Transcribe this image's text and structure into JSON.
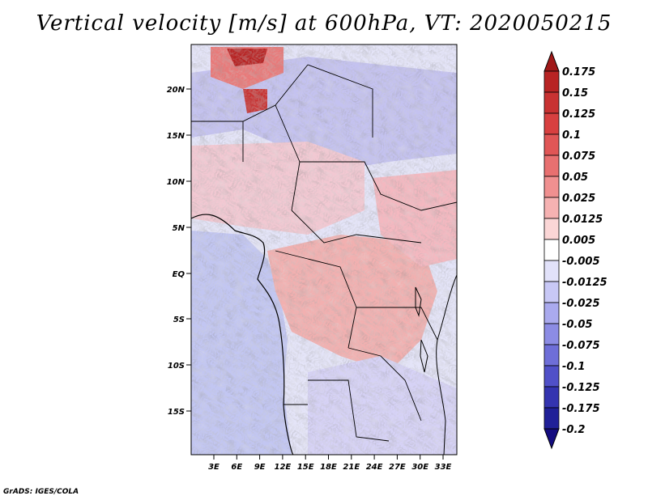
{
  "title": "Vertical velocity [m/s] at 600hPa, VT: 2020050215",
  "footer": "GrADS: IGES/COLA",
  "map": {
    "lat_labels": [
      "20N",
      "15N",
      "10N",
      "5N",
      "EQ",
      "5S",
      "10S",
      "15S"
    ],
    "lon_labels": [
      "3E",
      "6E",
      "9E",
      "12E",
      "15E",
      "18E",
      "21E",
      "24E",
      "27E",
      "30E",
      "33E"
    ]
  },
  "colorbar": {
    "labels": [
      "0.175",
      "0.15",
      "0.125",
      "0.1",
      "0.075",
      "0.05",
      "0.025",
      "0.0125",
      "0.005",
      "-0.005",
      "-0.0125",
      "-0.025",
      "-0.05",
      "-0.075",
      "-0.1",
      "-0.125",
      "-0.175",
      "-0.2"
    ],
    "colors": [
      "#a01818",
      "#b82424",
      "#c83232",
      "#d84040",
      "#e05656",
      "#e87070",
      "#f09090",
      "#f6b2b2",
      "#fbd6d6",
      "#ffffff",
      "#e2e2fa",
      "#c8c8f6",
      "#aaaaee",
      "#8c8ce4",
      "#6e6ed8",
      "#5050c8",
      "#3434b0",
      "#202098",
      "#140c80"
    ]
  }
}
